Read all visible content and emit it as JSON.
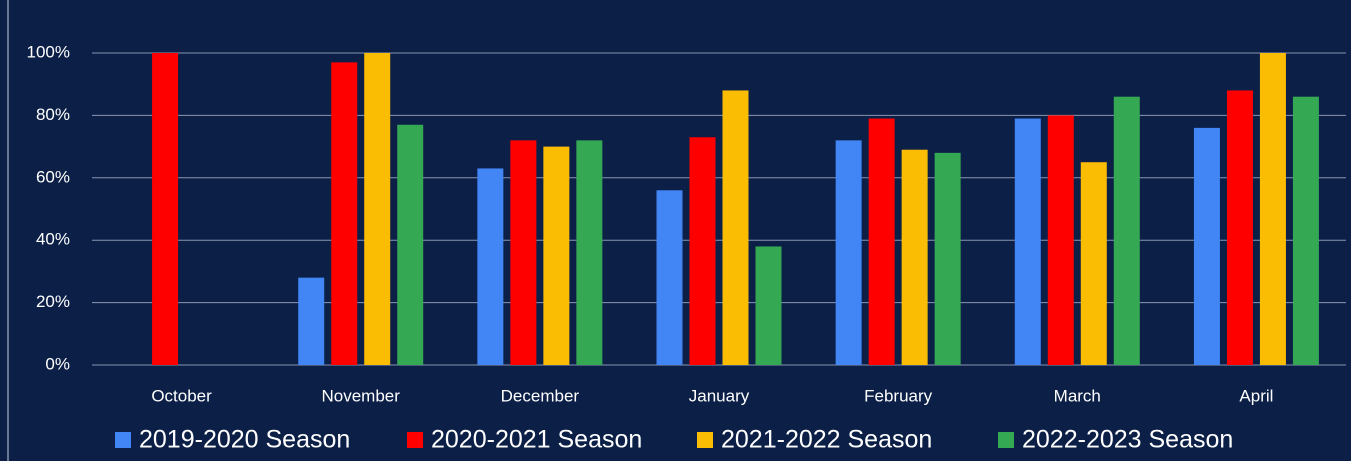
{
  "chart_data": {
    "type": "bar",
    "categories": [
      "October",
      "November",
      "December",
      "January",
      "February",
      "March",
      "April"
    ],
    "series": [
      {
        "name": "2019-2020 Season",
        "color": "#4285f4",
        "values": [
          null,
          28,
          63,
          56,
          72,
          79,
          76
        ]
      },
      {
        "name": "2020-2021 Season",
        "color": "#ff0000",
        "values": [
          100,
          97,
          72,
          73,
          79,
          80,
          88
        ]
      },
      {
        "name": "2021-2022 Season",
        "color": "#fbbc04",
        "values": [
          null,
          100,
          70,
          88,
          69,
          65,
          100
        ]
      },
      {
        "name": "2022-2023 Season",
        "color": "#34a853",
        "values": [
          null,
          77,
          72,
          38,
          68,
          86,
          86
        ]
      }
    ],
    "ylim": [
      0,
      100
    ],
    "yticks": [
      {
        "value": 0,
        "label": "0%"
      },
      {
        "value": 20,
        "label": "20%"
      },
      {
        "value": 40,
        "label": "40%"
      },
      {
        "value": 60,
        "label": "60%"
      },
      {
        "value": 80,
        "label": "80%"
      },
      {
        "value": 100,
        "label": "100%"
      }
    ],
    "grid": true,
    "legend": "bottom"
  }
}
